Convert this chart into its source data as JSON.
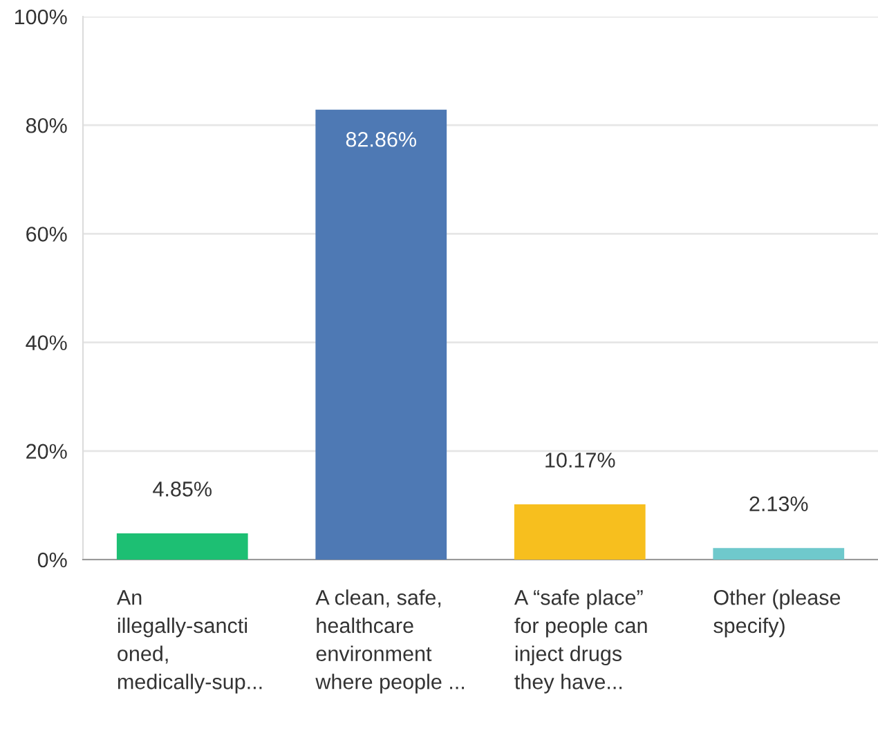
{
  "chart_data": {
    "type": "bar",
    "categories": [
      "An\nillegally-sancti\noned,\nmedically-sup...",
      "A clean, safe,\nhealthcare\nenvironment\nwhere people ...",
      "A “safe place”\nfor people can\ninject drugs\nthey have...",
      "Other (please\nspecify)"
    ],
    "values": [
      4.85,
      82.86,
      10.17,
      2.13
    ],
    "colors": [
      "#1dbf73",
      "#4e79b4",
      "#f7bf1e",
      "#6fc9cc"
    ],
    "value_labels": [
      "4.85%",
      "82.86%",
      "10.17%",
      "2.13%"
    ],
    "ylim": [
      0,
      100
    ],
    "yticks": [
      {
        "value": 0,
        "label": "0%"
      },
      {
        "value": 20,
        "label": "20%"
      },
      {
        "value": 40,
        "label": "40%"
      },
      {
        "value": 60,
        "label": "60%"
      },
      {
        "value": 80,
        "label": "80%"
      },
      {
        "value": 100,
        "label": "100%"
      }
    ],
    "grid": "y"
  }
}
